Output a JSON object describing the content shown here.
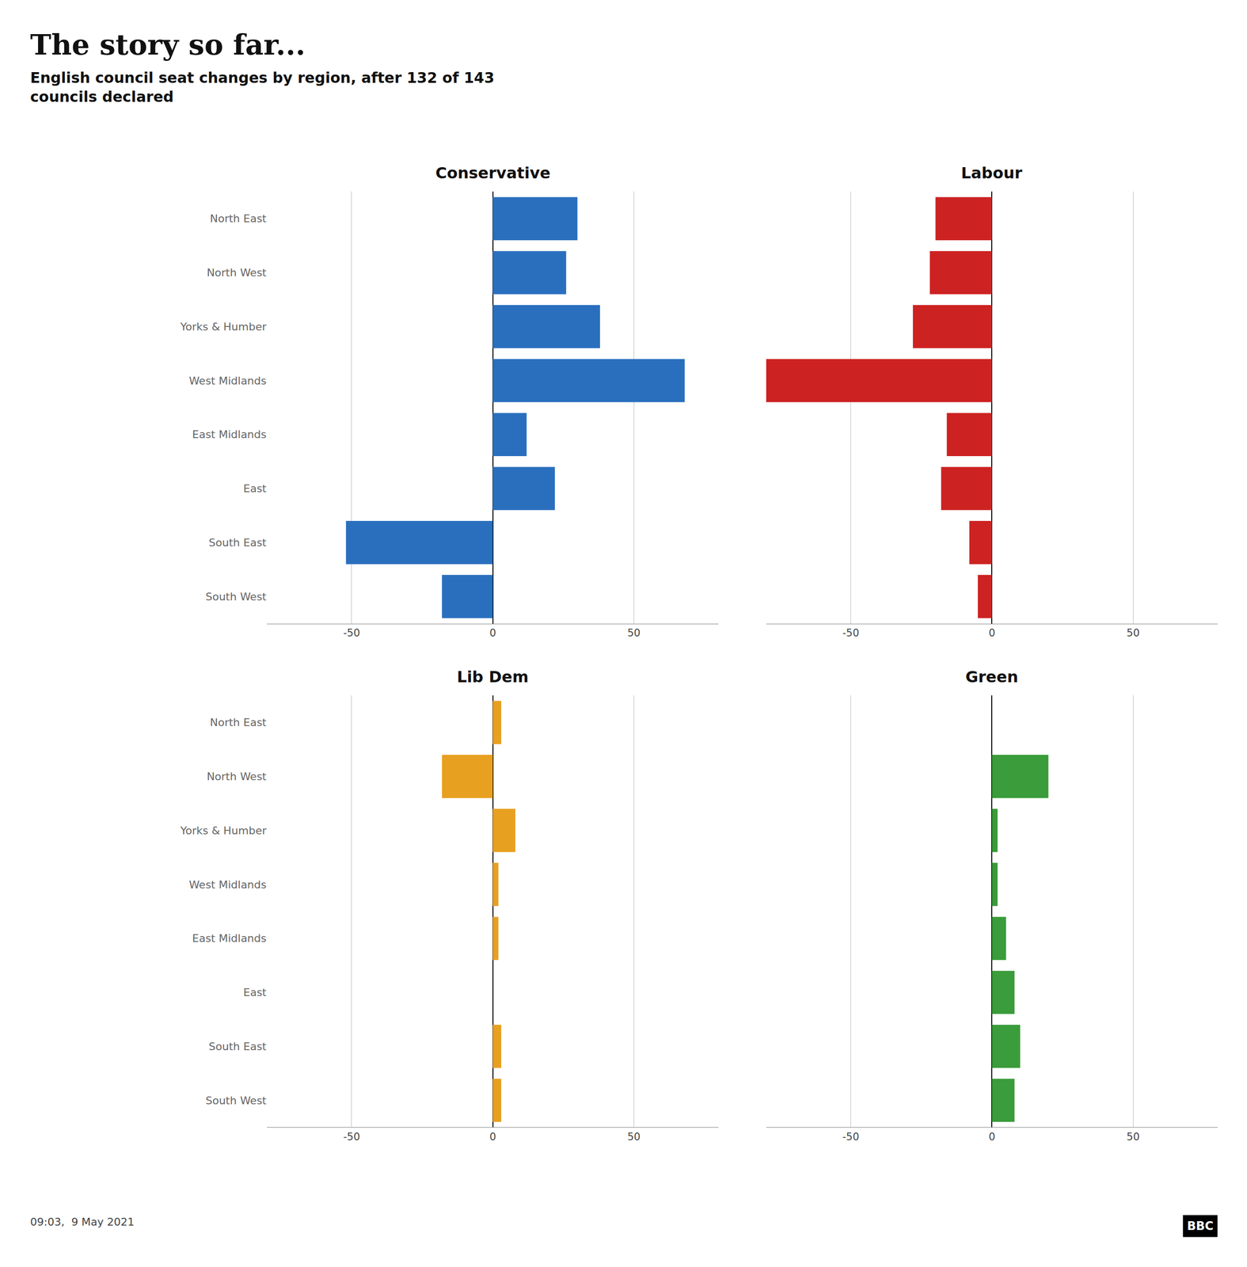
{
  "title": "The story so far...",
  "subtitle": "English council seat changes by region, after 132 of 143\ncouncils declared",
  "annotations": [
    "09:03,  9 May 2021",
    "BBC"
  ],
  "chart_data": [
    {
      "type": "bar",
      "orientation": "horizontal",
      "title": "Conservative",
      "categories": [
        "North East",
        "North West",
        "Yorks & Humber",
        "West Midlands",
        "East Midlands",
        "East",
        "South East",
        "South West"
      ],
      "values": [
        30,
        26,
        38,
        68,
        12,
        22,
        -52,
        -18
      ],
      "color": "#2a6fbe",
      "xlim": [
        -80,
        80
      ],
      "xticks": [
        -50,
        0,
        50
      ],
      "grid": true
    },
    {
      "type": "bar",
      "orientation": "horizontal",
      "title": "Labour",
      "categories": [
        "North East",
        "North West",
        "Yorks & Humber",
        "West Midlands",
        "East Midlands",
        "East",
        "South East",
        "South West"
      ],
      "values": [
        -20,
        -22,
        -28,
        -80,
        -16,
        -18,
        -8,
        -5
      ],
      "color": "#cc2222",
      "xlim": [
        -80,
        80
      ],
      "xticks": [
        -50,
        0,
        50
      ],
      "grid": true,
      "tick_labels": "x"
    },
    {
      "type": "bar",
      "orientation": "horizontal",
      "title": "Lib Dem",
      "categories": [
        "North East",
        "North West",
        "Yorks & Humber",
        "West Midlands",
        "East Midlands",
        "East",
        "South East",
        "South West"
      ],
      "values": [
        3,
        -18,
        8,
        2,
        2,
        0,
        3,
        3
      ],
      "color": "#e8a020",
      "xlim": [
        -80,
        80
      ],
      "xticks": [
        -50,
        0,
        50
      ],
      "grid": true
    },
    {
      "type": "bar",
      "orientation": "horizontal",
      "title": "Green",
      "categories": [
        "North East",
        "North West",
        "Yorks & Humber",
        "West Midlands",
        "East Midlands",
        "East",
        "South East",
        "South West"
      ],
      "values": [
        0,
        20,
        2,
        2,
        5,
        8,
        10,
        8
      ],
      "color": "#3a9c3a",
      "xlim": [
        -80,
        80
      ],
      "xticks": [
        -50,
        0,
        50
      ],
      "grid": true,
      "tick_labels": "x"
    }
  ]
}
